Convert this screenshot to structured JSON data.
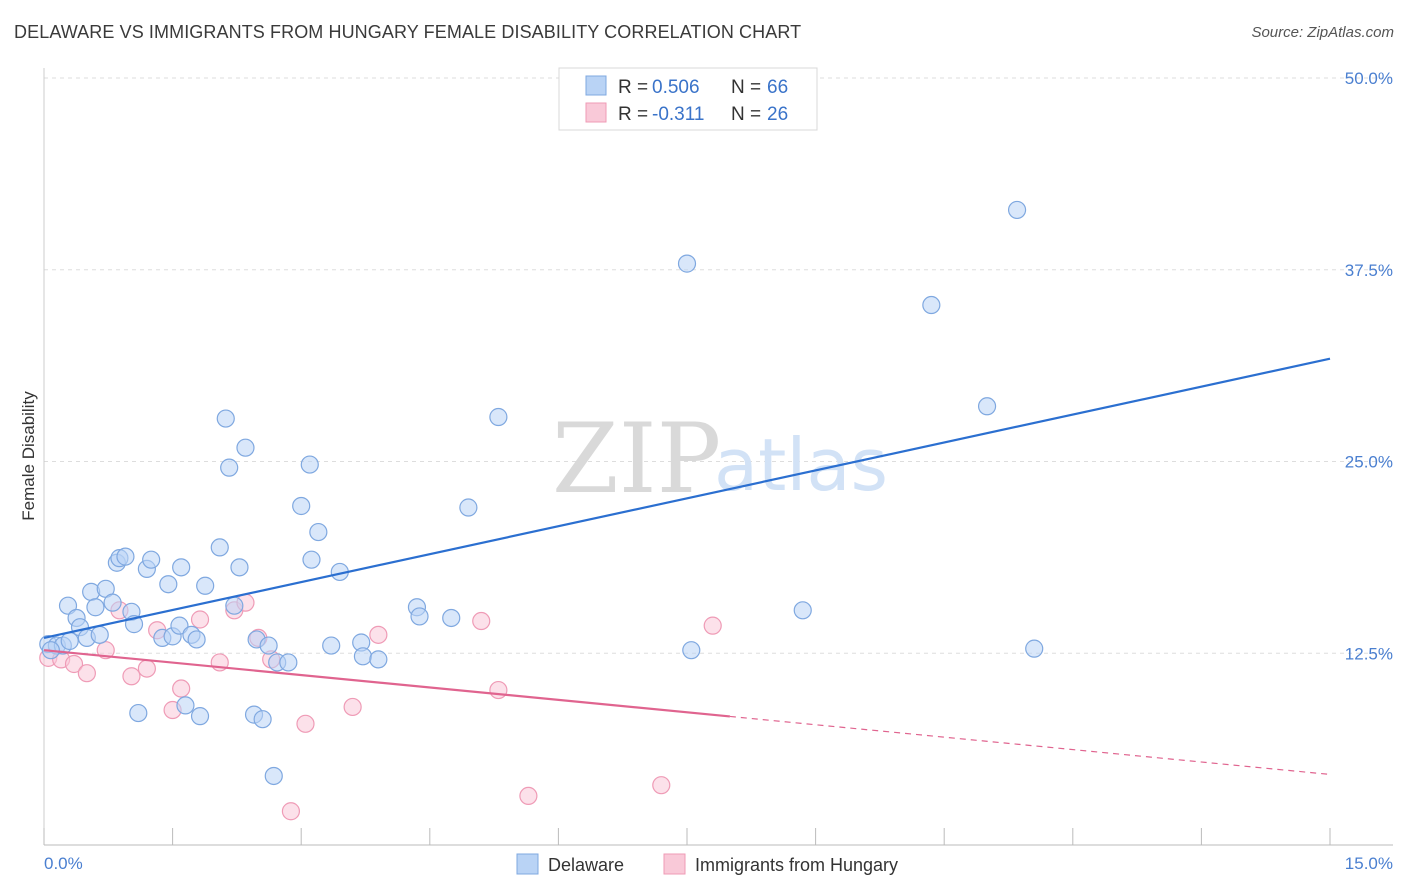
{
  "title": "DELAWARE VS IMMIGRANTS FROM HUNGARY FEMALE DISABILITY CORRELATION CHART",
  "source": "Source: ZipAtlas.com",
  "watermark": {
    "zip": "ZIP",
    "atlas": "atlas"
  },
  "colors": {
    "delaware_fill": "#b9d3f5",
    "delaware_stroke": "#7fa8e0",
    "delaware_line": "#2b6fd0",
    "hungary_fill": "#f9c9d8",
    "hungary_stroke": "#ef9bb6",
    "hungary_line": "#e0648f",
    "grid": "#dddddd",
    "tick_label": "#4a7fd0"
  },
  "legend": {
    "items": [
      {
        "r_label": "R = ",
        "r_value": "0.506",
        "n_label": "N = ",
        "n_value": "66"
      },
      {
        "r_label": "R = ",
        "r_value": "-0.311",
        "n_label": "N = ",
        "n_value": "26"
      }
    ]
  },
  "chart_data": {
    "type": "scatter",
    "title": "DELAWARE VS IMMIGRANTS FROM HUNGARY FEMALE DISABILITY CORRELATION CHART",
    "xlabel": "",
    "ylabel": "Female Disability",
    "xlim": [
      0,
      15
    ],
    "ylim": [
      0,
      50
    ],
    "x_tick_labels": [
      "0.0%",
      "15.0%"
    ],
    "y_ticks": [
      12.5,
      25.0,
      37.5,
      50.0
    ],
    "y_tick_labels": [
      "12.5%",
      "25.0%",
      "37.5%",
      "50.0%"
    ],
    "grid": true,
    "legend_position": "top-center",
    "series": [
      {
        "name": "Delaware",
        "points": [
          [
            0.05,
            13.1
          ],
          [
            0.15,
            13.0
          ],
          [
            0.22,
            13.0
          ],
          [
            0.28,
            15.6
          ],
          [
            0.3,
            13.3
          ],
          [
            0.38,
            14.8
          ],
          [
            0.42,
            14.2
          ],
          [
            0.5,
            13.5
          ],
          [
            0.55,
            16.5
          ],
          [
            0.6,
            15.5
          ],
          [
            0.65,
            13.7
          ],
          [
            0.72,
            16.7
          ],
          [
            0.8,
            15.8
          ],
          [
            0.85,
            18.4
          ],
          [
            0.88,
            18.7
          ],
          [
            0.95,
            18.8
          ],
          [
            1.02,
            15.2
          ],
          [
            1.05,
            14.4
          ],
          [
            1.1,
            8.6
          ],
          [
            1.2,
            18.0
          ],
          [
            1.25,
            18.6
          ],
          [
            1.38,
            13.5
          ],
          [
            1.45,
            17.0
          ],
          [
            1.5,
            13.6
          ],
          [
            1.58,
            14.3
          ],
          [
            1.6,
            18.1
          ],
          [
            1.65,
            9.1
          ],
          [
            1.72,
            13.7
          ],
          [
            1.78,
            13.4
          ],
          [
            1.82,
            8.4
          ],
          [
            1.88,
            16.9
          ],
          [
            2.05,
            19.4
          ],
          [
            2.12,
            27.8
          ],
          [
            2.16,
            24.6
          ],
          [
            2.22,
            15.6
          ],
          [
            2.28,
            18.1
          ],
          [
            2.35,
            25.9
          ],
          [
            2.45,
            8.5
          ],
          [
            2.48,
            13.4
          ],
          [
            2.55,
            8.2
          ],
          [
            2.62,
            13.0
          ],
          [
            2.68,
            4.5
          ],
          [
            2.72,
            11.9
          ],
          [
            2.85,
            11.9
          ],
          [
            3.0,
            22.1
          ],
          [
            3.1,
            24.8
          ],
          [
            3.12,
            18.6
          ],
          [
            3.2,
            20.4
          ],
          [
            3.35,
            13.0
          ],
          [
            3.45,
            17.8
          ],
          [
            3.7,
            13.2
          ],
          [
            3.72,
            12.3
          ],
          [
            3.9,
            12.1
          ],
          [
            4.35,
            15.5
          ],
          [
            4.38,
            14.9
          ],
          [
            4.75,
            14.8
          ],
          [
            4.95,
            22.0
          ],
          [
            5.3,
            27.9
          ],
          [
            7.5,
            37.9
          ],
          [
            7.55,
            12.7
          ],
          [
            8.85,
            15.3
          ],
          [
            10.35,
            35.2
          ],
          [
            11.0,
            28.6
          ],
          [
            11.35,
            41.4
          ],
          [
            11.55,
            12.8
          ],
          [
            0.08,
            12.7
          ]
        ]
      },
      {
        "name": "Immigrants from Hungary",
        "points": [
          [
            0.05,
            12.2
          ],
          [
            0.2,
            12.1
          ],
          [
            0.35,
            11.8
          ],
          [
            0.5,
            11.2
          ],
          [
            0.72,
            12.7
          ],
          [
            0.88,
            15.3
          ],
          [
            1.02,
            11.0
          ],
          [
            1.2,
            11.5
          ],
          [
            1.32,
            14.0
          ],
          [
            1.5,
            8.8
          ],
          [
            1.6,
            10.2
          ],
          [
            1.82,
            14.7
          ],
          [
            2.05,
            11.9
          ],
          [
            2.22,
            15.3
          ],
          [
            2.35,
            15.8
          ],
          [
            2.5,
            13.5
          ],
          [
            2.65,
            12.1
          ],
          [
            2.88,
            2.2
          ],
          [
            3.05,
            7.9
          ],
          [
            3.6,
            9.0
          ],
          [
            3.9,
            13.7
          ],
          [
            5.1,
            14.6
          ],
          [
            5.3,
            10.1
          ],
          [
            5.65,
            3.2
          ],
          [
            7.2,
            3.9
          ],
          [
            7.8,
            14.3
          ]
        ]
      }
    ],
    "trendlines": [
      {
        "series": "Delaware",
        "x": [
          0,
          15
        ],
        "y": [
          13.5,
          31.7
        ],
        "dashed_after": null
      },
      {
        "series": "Immigrants from Hungary",
        "x": [
          0,
          15
        ],
        "y": [
          12.7,
          4.6
        ],
        "solid_until": 8.0
      }
    ]
  }
}
